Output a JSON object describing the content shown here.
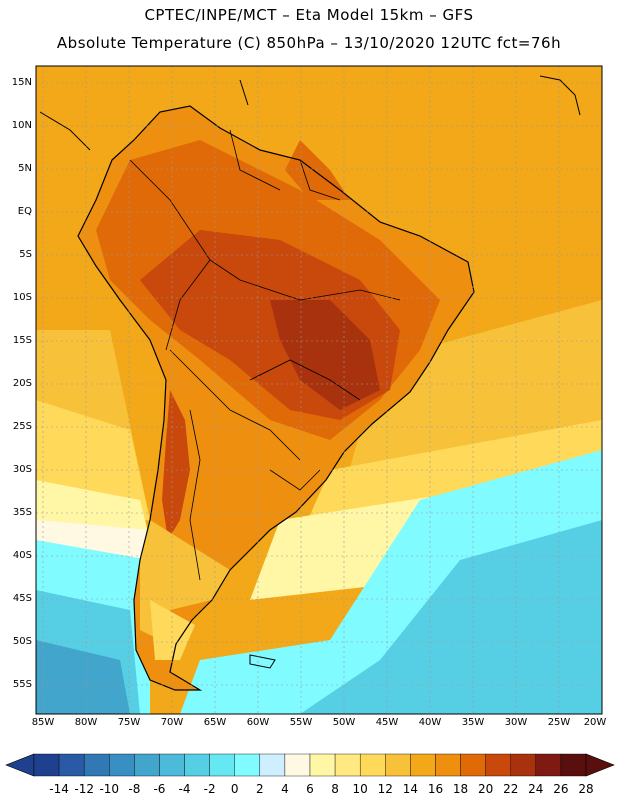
{
  "title_line1": "CPTEC/INPE/MCT –  Eta Model 15km – GFS",
  "title_line2": "Absolute Temperature (C) 850hPa – 13/10/2020 12UTC fct=76h",
  "lat_labels": [
    "15N",
    "10N",
    "5N",
    "EQ",
    "5S",
    "10S",
    "15S",
    "20S",
    "25S",
    "30S",
    "35S",
    "40S",
    "45S",
    "50S",
    "55S"
  ],
  "lon_labels": [
    "85W",
    "80W",
    "75W",
    "70W",
    "65W",
    "60W",
    "55W",
    "50W",
    "45W",
    "40W",
    "35W",
    "30W",
    "25W",
    "20W"
  ],
  "colorbar": {
    "labels": [
      "-14",
      "-12",
      "-10",
      "-8",
      "-6",
      "-4",
      "-2",
      "0",
      "2",
      "4",
      "6",
      "8",
      "10",
      "12",
      "14",
      "16",
      "18",
      "20",
      "22",
      "24",
      "26",
      "28"
    ],
    "colors": [
      "#1f3f8f",
      "#2a5aa5",
      "#3278b5",
      "#3a8fc2",
      "#42a5cc",
      "#4cbad8",
      "#56cfe4",
      "#66e8f2",
      "#80fbff",
      "#cfeeff",
      "#fff9e4",
      "#fff7a6",
      "#ffe980",
      "#ffd95a",
      "#f7c23a",
      "#f2a818",
      "#ef8f10",
      "#e06a08",
      "#c9480b",
      "#a9320e",
      "#7f1a12",
      "#5a0f0f"
    ]
  },
  "map_colors": {
    "ocean_warm": "#f2a818",
    "ocean_mid": "#f7c23a",
    "ocean_light": "#ffd95a",
    "ocean_pale": "#fff7a6",
    "ocean_cream": "#fff9e4",
    "ocean_cyan": "#80fbff",
    "ocean_teal": "#56cfe4",
    "ocean_deep": "#42a5cc",
    "land_hot": "#c9480b",
    "land_very_hot": "#a9320e",
    "land_warm": "#e06a08",
    "land_mild": "#ef8f10",
    "boundary": "#000000"
  }
}
